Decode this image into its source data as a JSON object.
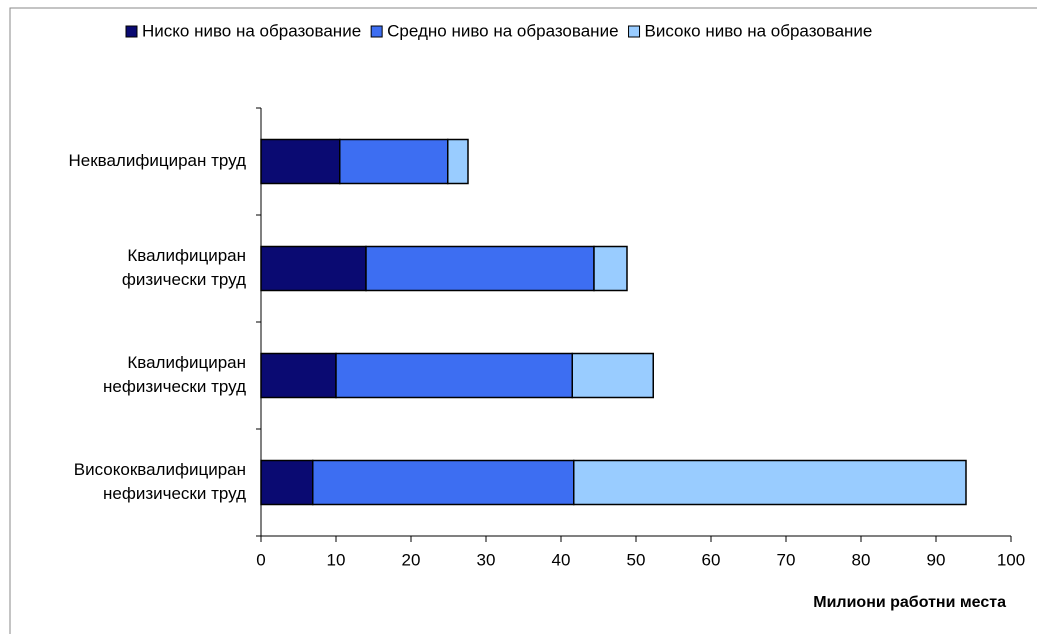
{
  "chart_data": {
    "type": "stacked-bar-horizontal",
    "xlabel": "Милиони работни места",
    "categories": [
      [
        "Неквалифициран труд"
      ],
      [
        "Квалифициран",
        "физически труд"
      ],
      [
        "Квалифициран",
        "нефизически труд"
      ],
      [
        "Висококвалифициран",
        "нефизически труд"
      ]
    ],
    "series": [
      {
        "name": "Ниско ниво на образование",
        "color": "#0a0a72",
        "values": [
          10.5,
          14.0,
          10.0,
          6.9
        ]
      },
      {
        "name": "Средно ниво на образование",
        "color": "#3d6ef2",
        "values": [
          14.4,
          30.4,
          31.5,
          34.8
        ]
      },
      {
        "name": "Високо ниво на образование",
        "color": "#99ccff",
        "values": [
          2.7,
          4.4,
          10.8,
          52.3
        ]
      }
    ],
    "xlim": [
      0,
      100
    ],
    "xticks": [
      0,
      10,
      20,
      30,
      40,
      50,
      60,
      70,
      80,
      90,
      100
    ],
    "grid": false,
    "legend": "top"
  }
}
